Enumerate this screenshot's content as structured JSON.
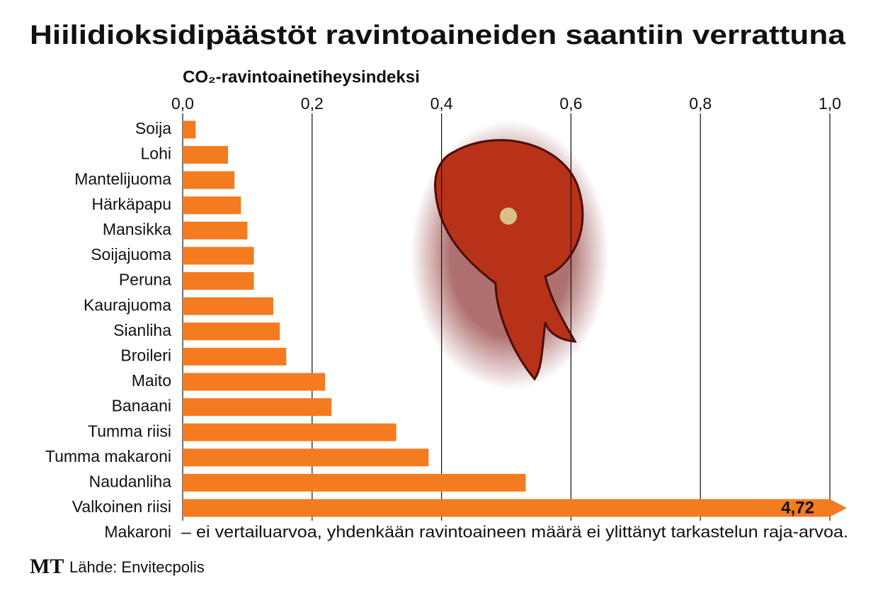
{
  "chart_data": {
    "type": "bar",
    "orientation": "horizontal",
    "title": "Hiilidioksidipäästöt ravintoaineiden saantiin verrattuna",
    "x_label": "CO₂-ravintoainetiheysindeksi",
    "categories": [
      "Soija",
      "Lohi",
      "Mantelijuoma",
      "Härkäpapu",
      "Mansikka",
      "Soijajuoma",
      "Peruna",
      "Kaurajuoma",
      "Sianliha",
      "Broileri",
      "Maito",
      "Banaani",
      "Tumma riisi",
      "Tumma makaroni",
      "Naudanliha",
      "Valkoinen riisi",
      "Makaroni"
    ],
    "values": [
      0.02,
      0.07,
      0.08,
      0.09,
      0.1,
      0.11,
      0.11,
      0.14,
      0.15,
      0.16,
      0.22,
      0.23,
      0.33,
      0.38,
      0.53,
      4.72,
      null
    ],
    "value_labels": [
      null,
      null,
      null,
      null,
      null,
      null,
      null,
      null,
      null,
      null,
      null,
      null,
      null,
      null,
      null,
      "4,72",
      null
    ],
    "note": "– ei vertailuarvoa, yhdenkään ravintoaineen määrä ei ylittänyt tarkastelun raja-arvoa.",
    "color": "#f47b20",
    "xlim": [
      0,
      1
    ],
    "xticks": [
      {
        "value": 0,
        "label": "0,0"
      },
      {
        "value": 0.2,
        "label": "0,2"
      },
      {
        "value": 0.4,
        "label": "0,4"
      },
      {
        "value": 0.6,
        "label": "0,6"
      },
      {
        "value": 0.8,
        "label": "0,8"
      },
      {
        "value": 1,
        "label": "1,0"
      }
    ],
    "grid": true,
    "logo": "MT",
    "source": "Lähde: Envitecpolis"
  }
}
